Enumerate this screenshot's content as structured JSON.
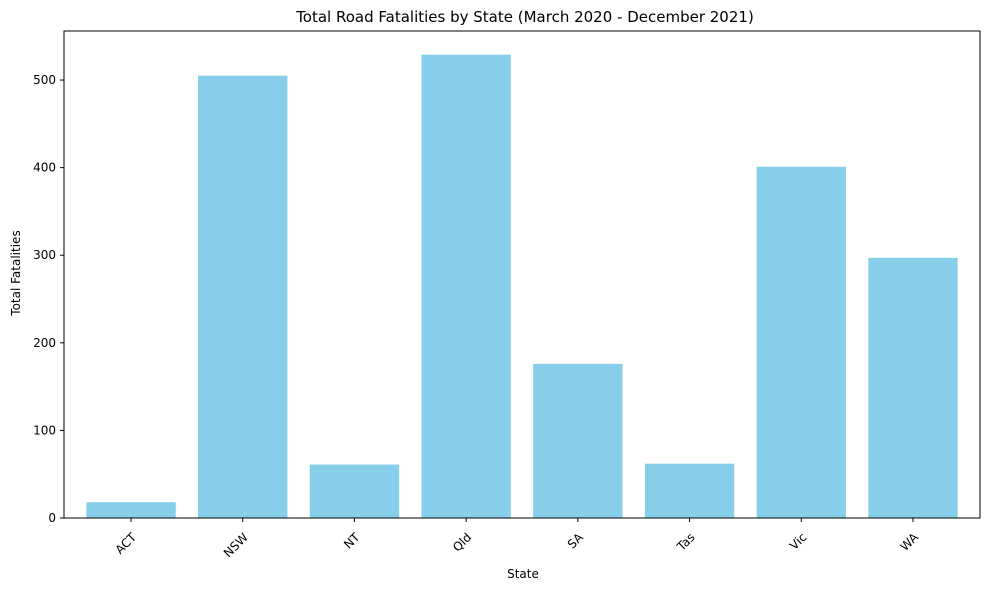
{
  "chart_data": {
    "type": "bar",
    "title": "Total Road Fatalities by State (March 2020 - December 2021)",
    "xlabel": "State",
    "ylabel": "Total Fatalities",
    "categories": [
      "ACT",
      "NSW",
      "NT",
      "Qld",
      "SA",
      "Tas",
      "Vic",
      "WA"
    ],
    "values": [
      18,
      505,
      61,
      529,
      176,
      62,
      401,
      297
    ],
    "ylim": [
      0,
      556
    ],
    "yticks": [
      0,
      100,
      200,
      300,
      400,
      500
    ],
    "xtick_rotation": 45,
    "grid": false,
    "legend": "none",
    "bar_color": "#87ceeb"
  }
}
